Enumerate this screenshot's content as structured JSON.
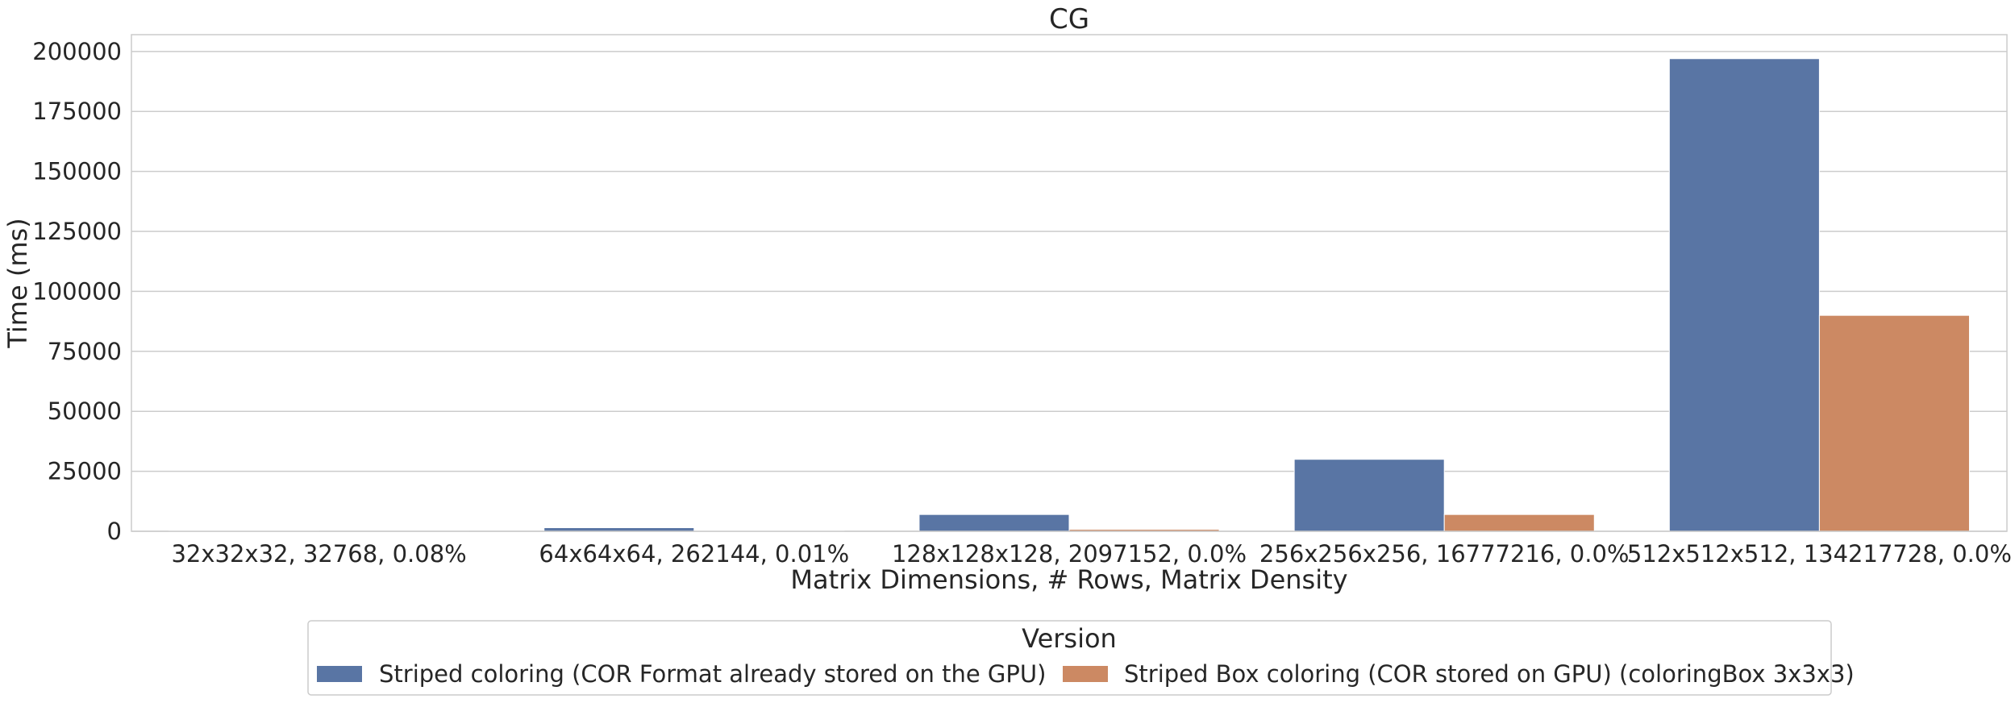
{
  "chart_data": {
    "type": "bar",
    "title": "CG",
    "xlabel": "Matrix Dimensions, # Rows, Matrix Density",
    "ylabel": "Time (ms)",
    "ylim": [
      0,
      207000
    ],
    "yticks": [
      "0",
      "25000",
      "50000",
      "75000",
      "100000",
      "125000",
      "150000",
      "175000",
      "200000"
    ],
    "grid": true,
    "legend_position": "bottom-center",
    "categories": [
      "32x32x32, 32768, 0.08%",
      "64x64x64, 262144, 0.01%",
      "128x128x128, 2097152, 0.0%",
      "256x256x256, 16777216, 0.0%",
      "512x512x512, 134217728, 0.0%"
    ],
    "series": [
      {
        "name": "Striped coloring (COR Format already stored on the GPU)",
        "color": "#5975a4",
        "values": [
          150,
          1500,
          7000,
          30000,
          197000
        ]
      },
      {
        "name": "Striped Box coloring (COR stored on GPU) (coloringBox 3x3x3)",
        "color": "#cc8963",
        "values": [
          30,
          150,
          800,
          7000,
          90000
        ]
      }
    ],
    "legend_title": "Version"
  }
}
